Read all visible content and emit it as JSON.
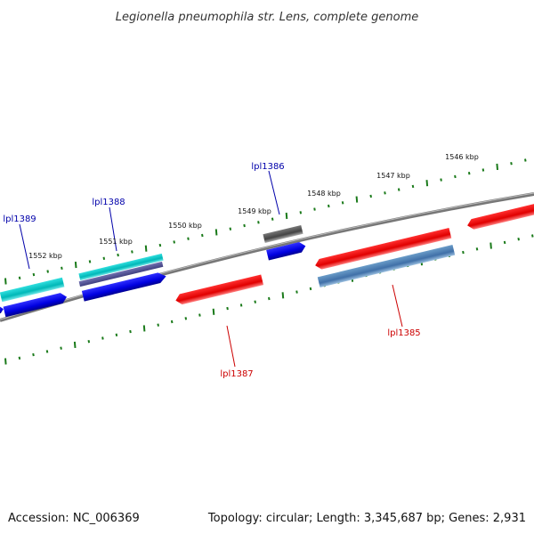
{
  "title": "Legionella pneumophila str. Lens, complete genome",
  "footer": {
    "accession": "Accession: NC_006369",
    "summary": "Topology: circular; Length: 3,345,687 bp; Genes: 2,931"
  },
  "ruler": {
    "unit": "kbp",
    "ticks": [
      "1552 kbp",
      "1551 kbp",
      "1550 kbp",
      "1549 kbp",
      "1548 kbp",
      "1547 kbp",
      "1546 kbp"
    ]
  },
  "genes": [
    {
      "name": "lpl1389",
      "label": "lpl1389",
      "strand": "forward",
      "color": "#0000aa"
    },
    {
      "name": "lpl1388",
      "label": "lpl1388",
      "strand": "forward",
      "color": "#0000aa"
    },
    {
      "name": "lpl1387",
      "label": "lpl1387",
      "strand": "reverse",
      "color": "#cc0000"
    },
    {
      "name": "lpl1386",
      "label": "lpl1386",
      "strand": "forward",
      "color": "#0000aa"
    },
    {
      "name": "lpl1385",
      "label": "lpl1385",
      "strand": "reverse",
      "color": "#cc0000"
    }
  ],
  "colors": {
    "forward_gene": "#0000ee",
    "reverse_gene": "#ee0000",
    "cyan_feature": "#00c8c8",
    "gray_feature": "#555555",
    "steelblue_feature": "#4682b4",
    "tick_green": "#1a7a1a",
    "backbone": "#888888"
  }
}
